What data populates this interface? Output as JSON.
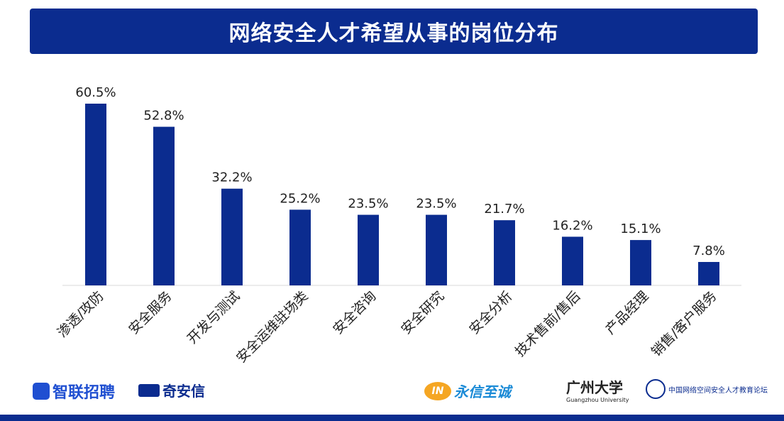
{
  "chart_data": {
    "type": "bar",
    "title": "网络安全人才希望从事的岗位分布",
    "categories": [
      "渗透/攻防",
      "安全服务",
      "开发与测试",
      "安全运维驻场类",
      "安全咨询",
      "安全研究",
      "安全分析",
      "技术售前/售后",
      "产品经理",
      "销售/客户服务"
    ],
    "values": [
      60.5,
      52.8,
      32.2,
      25.2,
      23.5,
      23.5,
      21.7,
      16.2,
      15.1,
      7.8
    ],
    "data_labels": [
      "60.5%",
      "52.8%",
      "32.2%",
      "25.2%",
      "23.5%",
      "23.5%",
      "21.7%",
      "16.2%",
      "15.1%",
      "7.8%"
    ],
    "unit": "%",
    "ylim": [
      0,
      70
    ],
    "grid": false,
    "bar_color": "#0b2c8f",
    "title_bar_color": "#0b2c8f"
  },
  "logos": [
    {
      "name": "智联招聘",
      "color": "#1f4fd1"
    },
    {
      "name": "奇安信",
      "color": "#0b2c8f"
    },
    {
      "name": "永信至诚",
      "color": "#1a8ad6"
    },
    {
      "name": "广州大学",
      "sub": "Guangzhou University",
      "color": "#222222"
    },
    {
      "name": "中国网络空间安全人才教育论坛",
      "color": "#0b2c8f"
    }
  ]
}
